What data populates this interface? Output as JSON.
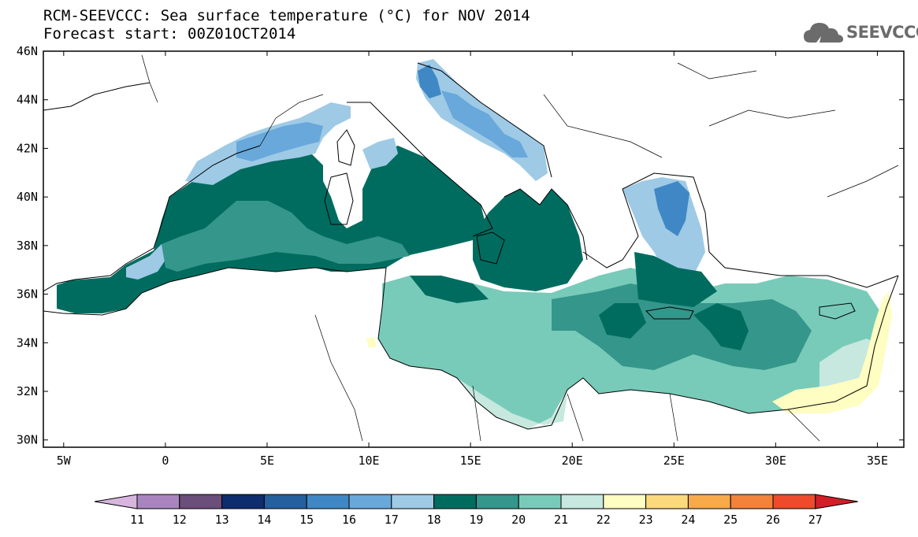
{
  "title_line1": "RCM-SEEVCCC: Sea surface temperature (°C) for NOV 2014",
  "title_line2": "Forecast start: 00Z01OCT2014",
  "logo_text": "SEEVCCC",
  "lat_labels": [
    "46N",
    "44N",
    "42N",
    "40N",
    "38N",
    "36N",
    "34N",
    "32N",
    "30N"
  ],
  "lon_labels": [
    "5W",
    "0",
    "5E",
    "10E",
    "15E",
    "20E",
    "25E",
    "30E",
    "35E"
  ],
  "colorbar": {
    "labels": [
      "11",
      "12",
      "13",
      "14",
      "15",
      "16",
      "17",
      "18",
      "19",
      "20",
      "21",
      "22",
      "23",
      "24",
      "25",
      "26",
      "27"
    ],
    "colors": [
      "#d7b5de",
      "#a985bf",
      "#6b4e79",
      "#0d2d6e",
      "#245f9e",
      "#3f88c5",
      "#68a8db",
      "#9ecae6",
      "#006c5f",
      "#35968b",
      "#78cbb9",
      "#c6e8df",
      "#fefdc2",
      "#fbd97c",
      "#f7aa49",
      "#f3823a",
      "#ed4b2c",
      "#d21f27"
    ]
  },
  "colors": {
    "land": "#ffffff",
    "coast": "#000000"
  }
}
